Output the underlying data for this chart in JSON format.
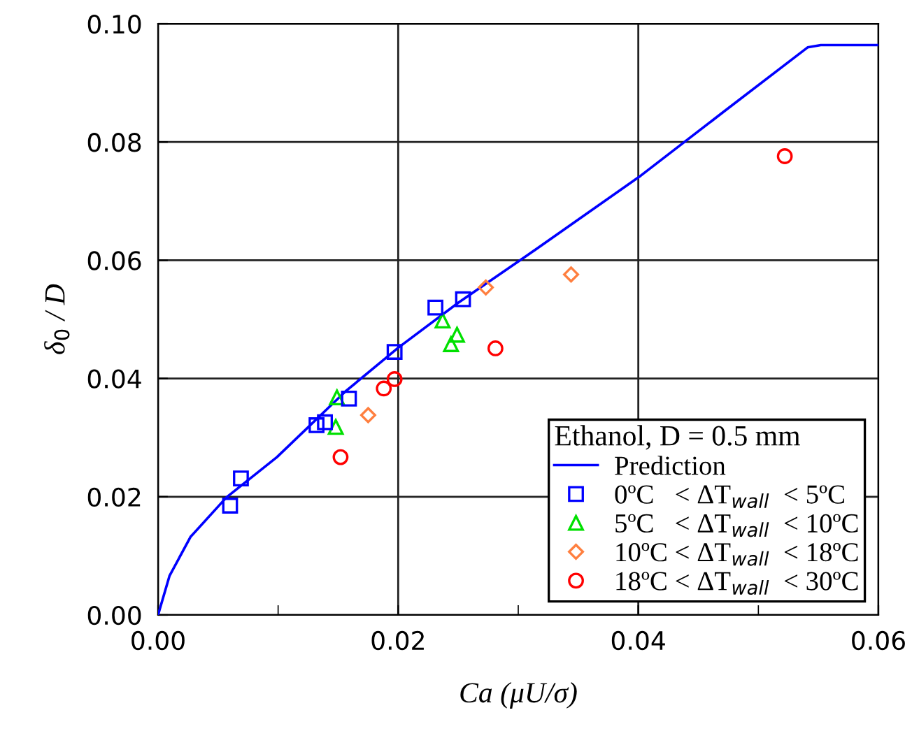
{
  "chart_data": {
    "type": "scatter",
    "xlabel": "Ca (μU/σ)",
    "ylabel": "δ$_{0}$ / D",
    "legend_title": "Ethanol, D = 0.5 mm",
    "xlim": [
      0,
      0.06
    ],
    "ylim": [
      0,
      0.1
    ],
    "xticks": [
      {
        "value": 0,
        "label": "0.00"
      },
      {
        "value": 0.01,
        "label": null
      },
      {
        "value": 0.02,
        "label": "0.02"
      },
      {
        "value": 0.03,
        "label": null
      },
      {
        "value": 0.04,
        "label": "0.04"
      },
      {
        "value": 0.05,
        "label": null
      },
      {
        "value": 0.06,
        "label": "0.06"
      }
    ],
    "yticks": [
      {
        "value": 0,
        "label": "0.00"
      },
      {
        "value": 0.02,
        "label": "0.02"
      },
      {
        "value": 0.04,
        "label": "0.04"
      },
      {
        "value": 0.06,
        "label": "0.06"
      },
      {
        "value": 0.08,
        "label": "0.08"
      },
      {
        "value": 0.1,
        "label": "0.10"
      }
    ],
    "grid": true,
    "legend": "bottom right",
    "series": [
      {
        "name": "Prediction",
        "type": "line",
        "color": "#0000ff",
        "marker": "none",
        "line_style": "solid",
        "x": [
          0,
          0.00095,
          0.0027,
          0.0057,
          0.0099,
          0.0156,
          0.02,
          0.025,
          0.0308,
          0.0402,
          0.0471,
          0.0541,
          0.0552,
          0.06
        ],
        "values": [
          0,
          0.0066,
          0.0132,
          0.0199,
          0.0267,
          0.0378,
          0.0452,
          0.0528,
          0.0609,
          0.0743,
          0.0851,
          0.096,
          0.0964,
          0.0964
        ]
      },
      {
        "name": "0ºC   < ΔT$_{wall}$  < 5ºC",
        "color": "#0000ff",
        "marker": "square",
        "x": [
          0.006,
          0.0069,
          0.0132,
          0.0139,
          0.0159,
          0.0197,
          0.0231,
          0.0254
        ],
        "values": [
          0.0185,
          0.0231,
          0.0321,
          0.0326,
          0.0366,
          0.0445,
          0.052,
          0.0534
        ]
      },
      {
        "name": "5ºC   < ΔT$_{wall}$  < 10ºC",
        "color": "#00e000",
        "marker": "triangle",
        "x": [
          0.0149,
          0.0148,
          0.0237,
          0.0249,
          0.0244
        ],
        "values": [
          0.0368,
          0.0318,
          0.0498,
          0.0474,
          0.0458
        ]
      },
      {
        "name": "10ºC < ΔT$_{wall}$  < 18ºC",
        "color": "#ff7f3f",
        "marker": "diamond",
        "x": [
          0.0175,
          0.0273,
          0.0344
        ],
        "values": [
          0.0338,
          0.0554,
          0.0576
        ]
      },
      {
        "name": "18ºC < ΔT$_{wall}$  < 30ºC",
        "color": "#ff0000",
        "marker": "circle",
        "x": [
          0.0152,
          0.0188,
          0.0197,
          0.0281,
          0.0522
        ],
        "values": [
          0.0267,
          0.0383,
          0.0399,
          0.0451,
          0.0776
        ]
      }
    ]
  }
}
